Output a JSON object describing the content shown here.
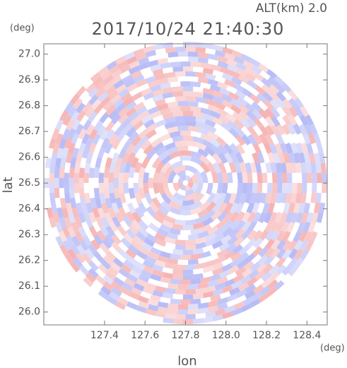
{
  "chart_data": {
    "type": "radar-ppi",
    "title": "2017/10/24 21:40:30",
    "subtitle": "ALT(km) 2.0",
    "x_label": "lon",
    "y_label": "lat",
    "x_unit": "(deg)",
    "y_unit": "(deg)",
    "xlim": [
      127.1,
      128.5
    ],
    "ylim": [
      25.95,
      27.04
    ],
    "xticks": [
      {
        "value": 127.4,
        "label": "127.4"
      },
      {
        "value": 127.6,
        "label": "127.6"
      },
      {
        "value": 127.8,
        "label": "127.8"
      },
      {
        "value": 128.0,
        "label": "128.0"
      },
      {
        "value": 128.2,
        "label": "128.2"
      },
      {
        "value": 128.4,
        "label": "128.4"
      }
    ],
    "yticks": [
      {
        "value": 26.0,
        "label": "26.0"
      },
      {
        "value": 26.1,
        "label": "26.1"
      },
      {
        "value": 26.2,
        "label": "26.2"
      },
      {
        "value": 26.3,
        "label": "26.3"
      },
      {
        "value": 26.4,
        "label": "26.4"
      },
      {
        "value": 26.5,
        "label": "26.5"
      },
      {
        "value": 26.6,
        "label": "26.6"
      },
      {
        "value": 26.7,
        "label": "26.7"
      },
      {
        "value": 26.8,
        "label": "26.8"
      },
      {
        "value": 26.9,
        "label": "26.9"
      },
      {
        "value": 27.0,
        "label": "27.0"
      }
    ]
  }
}
